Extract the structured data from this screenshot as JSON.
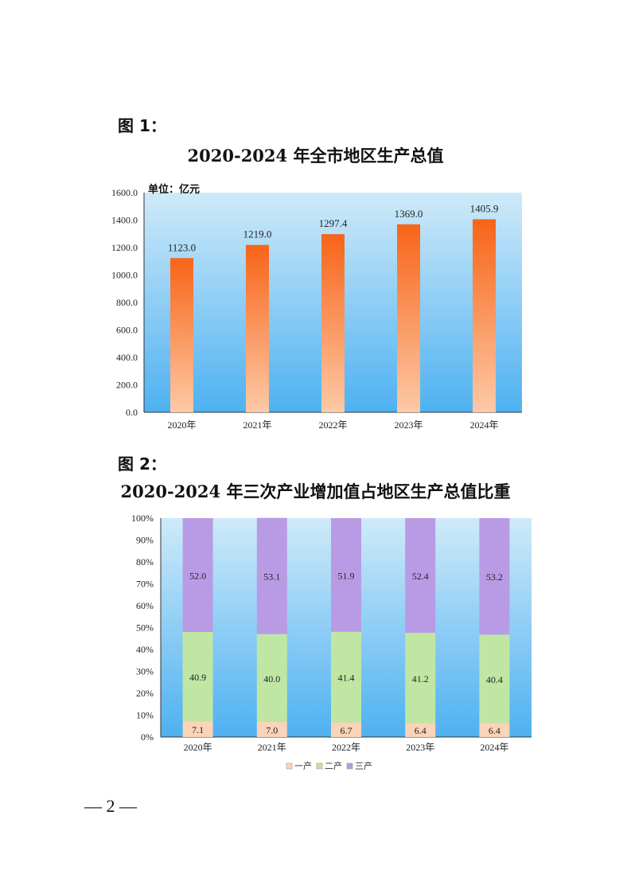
{
  "page": {
    "footer": "— 2 —"
  },
  "chart_data": [
    {
      "type": "bar",
      "figure_label": "图 1：",
      "title": "2020-2024 年全市地区生产总值",
      "unit_label": "单位：亿元",
      "categories": [
        "2020年",
        "2021年",
        "2022年",
        "2023年",
        "2024年"
      ],
      "values": [
        1123.0,
        1219.0,
        1297.4,
        1369.0,
        1405.9
      ],
      "value_labels": [
        "1123.0",
        "1219.0",
        "1297.4",
        "1369.0",
        "1405.9"
      ],
      "ylim": [
        0,
        1600
      ],
      "yticks": [
        "0.0",
        "200.0",
        "400.0",
        "600.0",
        "800.0",
        "1000.0",
        "1200.0",
        "1400.0",
        "1600.0"
      ],
      "grid": false,
      "colors": {
        "bar_top": "#f76418",
        "bar_bottom": "#fdc9a6",
        "plot_top": "#cfeaf9",
        "plot_bottom": "#4eb1f1"
      }
    },
    {
      "type": "bar",
      "stacked": true,
      "figure_label": "图 2：",
      "title": "2020-2024 年三次产业增加值占地区生产总值比重",
      "categories": [
        "2020年",
        "2021年",
        "2022年",
        "2023年",
        "2024年"
      ],
      "series": [
        {
          "name": "一产",
          "values": [
            7.1,
            7.0,
            6.7,
            6.4,
            6.4
          ],
          "labels": [
            "7.1",
            "7.0",
            "6.7",
            "6.4",
            "6.4"
          ],
          "color": "#fbd3b8"
        },
        {
          "name": "二产",
          "values": [
            40.9,
            40.0,
            41.4,
            41.2,
            40.4
          ],
          "labels": [
            "40.9",
            "40.0",
            "41.4",
            "41.2",
            "40.4"
          ],
          "color": "#bfe7a3"
        },
        {
          "name": "三产",
          "values": [
            52.0,
            53.1,
            51.9,
            52.4,
            53.2
          ],
          "labels": [
            "52.0",
            "53.1",
            "51.9",
            "52.4",
            "53.2"
          ],
          "color": "#b99be5"
        }
      ],
      "ylim": [
        0,
        100
      ],
      "yticks": [
        "0%",
        "10%",
        "20%",
        "30%",
        "40%",
        "50%",
        "60%",
        "70%",
        "80%",
        "90%",
        "100%"
      ],
      "legend": "bottom",
      "grid": false,
      "colors": {
        "plot_top": "#cfeaf9",
        "plot_bottom": "#4eb1f1"
      }
    }
  ]
}
